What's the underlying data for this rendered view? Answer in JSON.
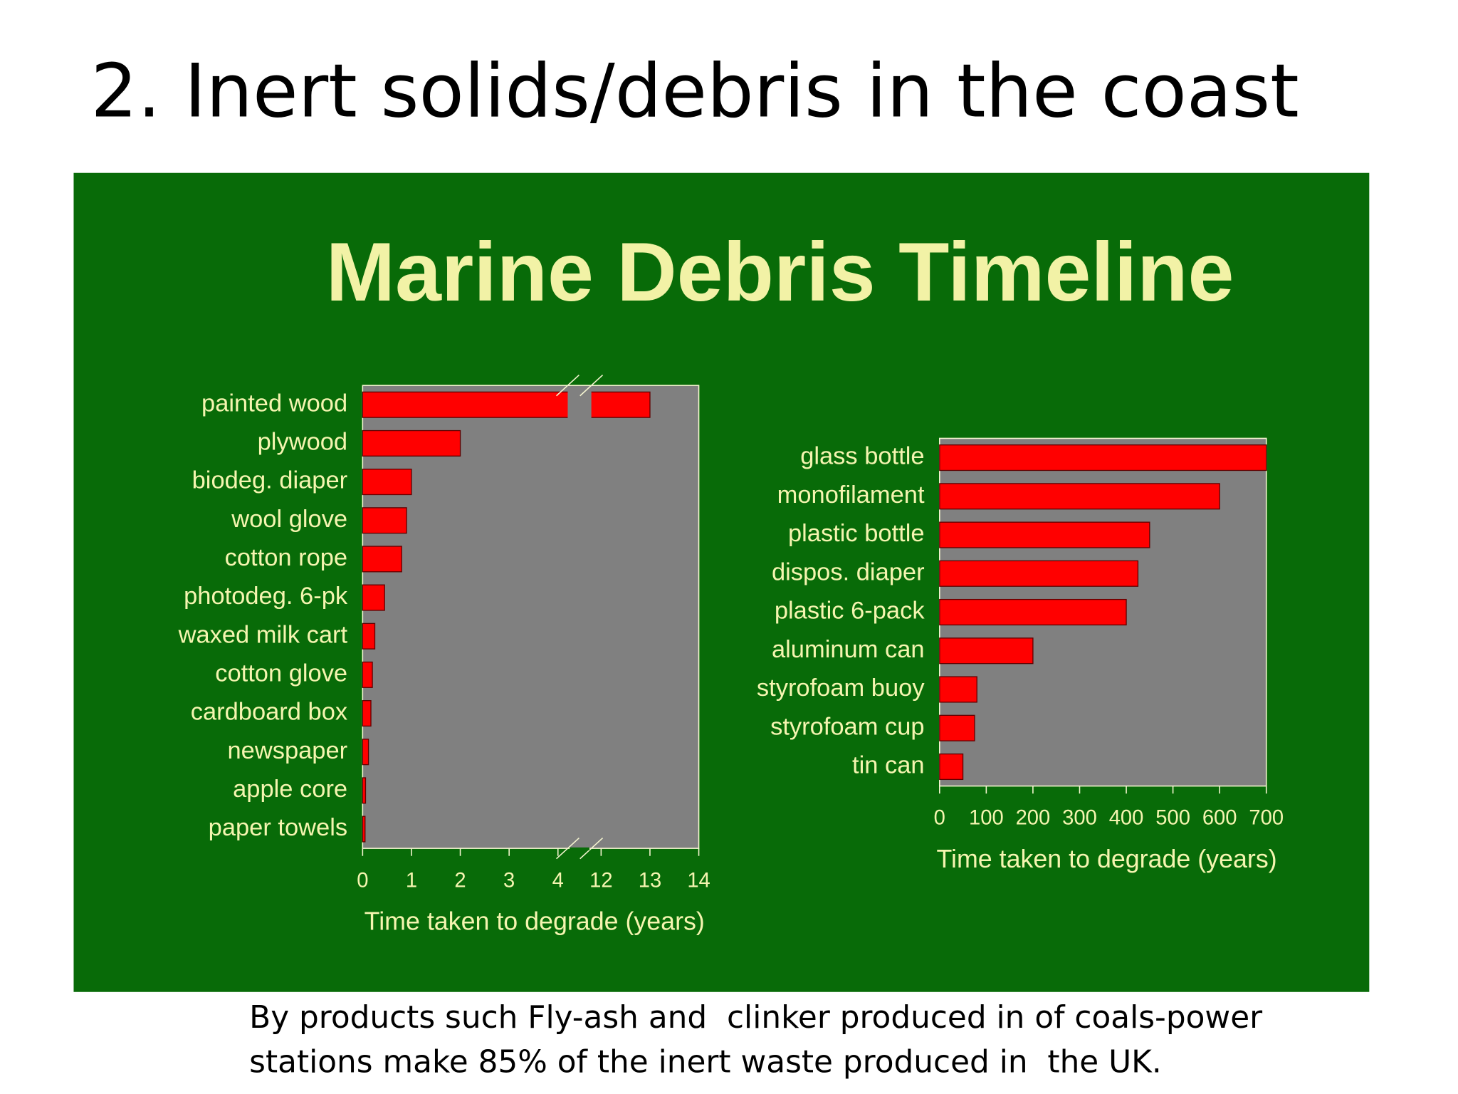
{
  "slide_title": "2. Inert solids/debris in the coast",
  "panel_title": "Marine Debris Timeline",
  "caption": [
    "By products such Fly-ash and  clinker produced in of coals-power",
    "stations make 85% of the inert waste produced in  the UK."
  ],
  "chart_data": [
    {
      "type": "bar",
      "orientation": "horizontal",
      "categories": [
        "painted wood",
        "plywood",
        "biodeg. diaper",
        "wool glove",
        "cotton rope",
        "photodeg. 6-pk",
        "waxed milk cart",
        "cotton glove",
        "cardboard box",
        "newspaper",
        "apple core",
        "paper towels"
      ],
      "values": [
        13,
        2,
        1,
        0.9,
        0.8,
        0.45,
        0.25,
        0.2,
        0.17,
        0.12,
        0.06,
        0.05
      ],
      "color": "#ff0000",
      "xlabel": "Time taken to degrade (years)",
      "xlim": [
        0,
        14
      ],
      "xbreak": [
        4.2,
        11.8
      ],
      "xticks": [
        0,
        1,
        2,
        3,
        4,
        12,
        13,
        14
      ],
      "grid": false
    },
    {
      "type": "bar",
      "orientation": "horizontal",
      "categories": [
        "glass bottle",
        "monofilament",
        "plastic bottle",
        "dispos. diaper",
        "plastic 6-pack",
        "aluminum can",
        "styrofoam buoy",
        "styrofoam cup",
        "tin can"
      ],
      "values": [
        700,
        600,
        450,
        425,
        400,
        200,
        80,
        75,
        50
      ],
      "color": "#ff0000",
      "xlabel": "Time taken to degrade (years)",
      "xlim": [
        0,
        700
      ],
      "xticks": [
        0,
        100,
        200,
        300,
        400,
        500,
        600,
        700
      ],
      "grid": false
    }
  ]
}
